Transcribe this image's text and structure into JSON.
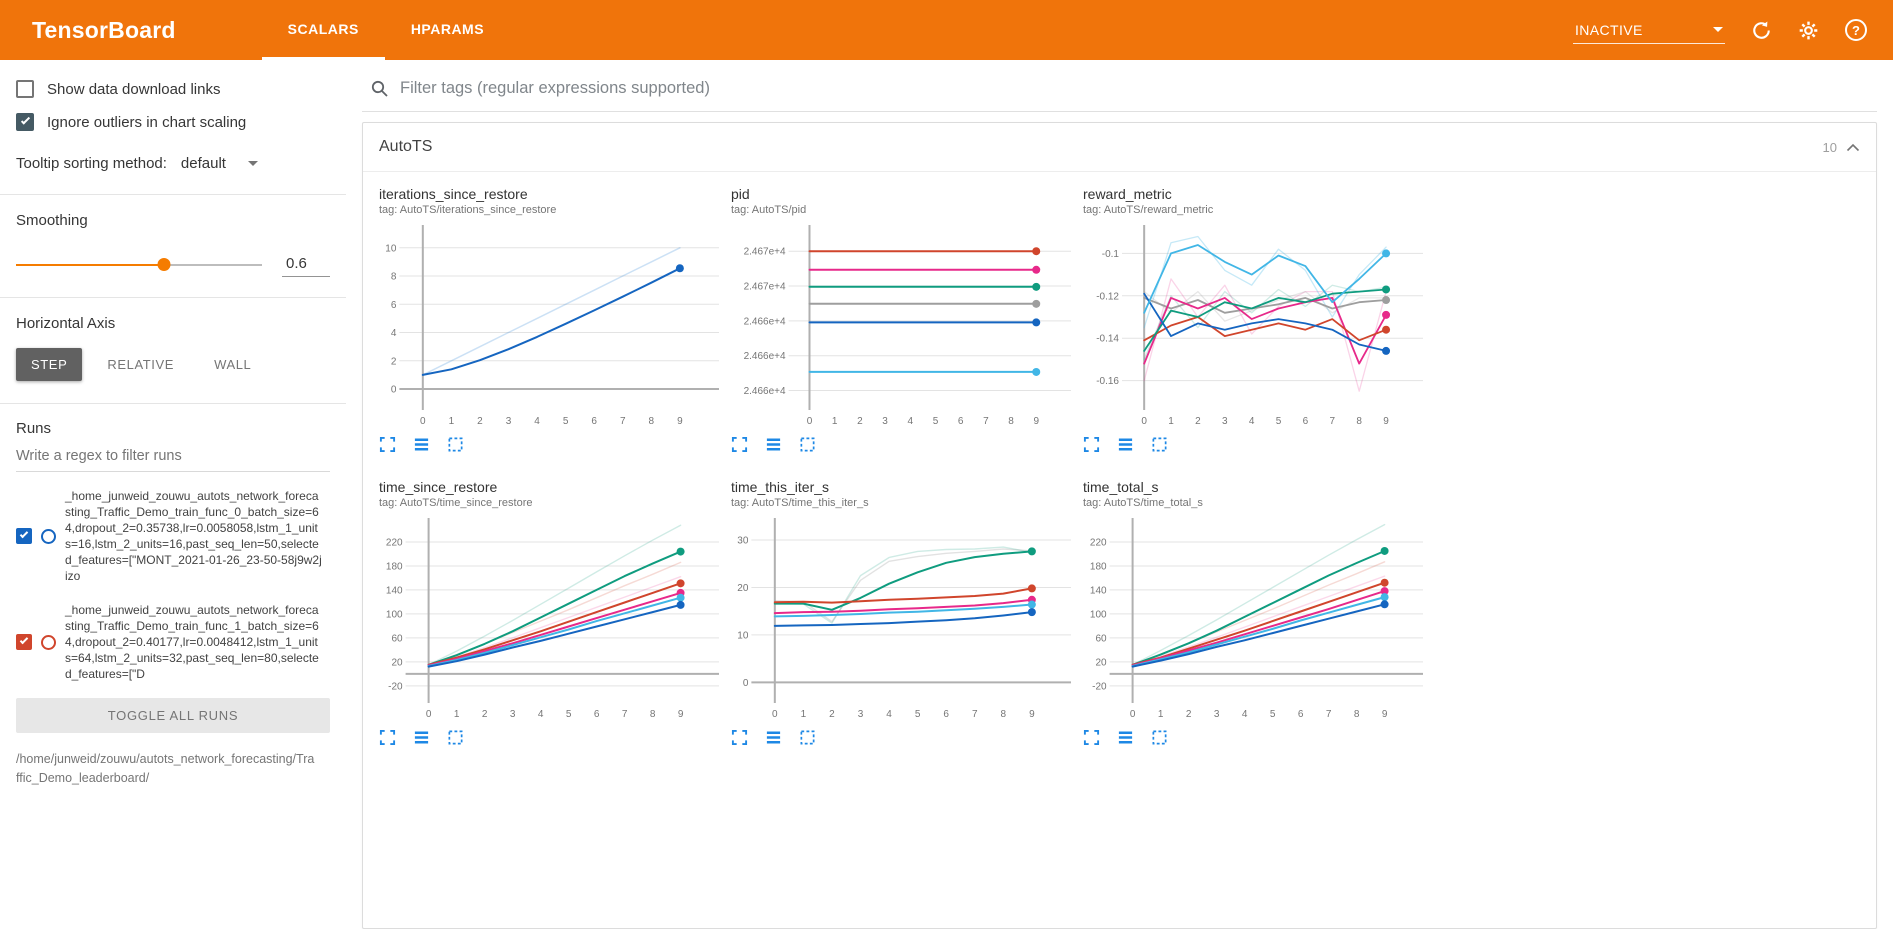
{
  "colors": {
    "header_orange": "#f0740b",
    "slider_orange": "#f57c00",
    "chart_icon_blue": "#1e88e5",
    "active_axis_button_gray": "#616161",
    "checked_checkbox_slate": "#455a64"
  },
  "header": {
    "title": "TensorBoard",
    "tabs": [
      {
        "label": "SCALARS",
        "active": true
      },
      {
        "label": "HPARAMS",
        "active": false
      }
    ],
    "status": "INACTIVE",
    "help_glyph": "?"
  },
  "sidebar": {
    "show_download_label": "Show data download links",
    "ignore_outliers_label": "Ignore outliers in chart scaling",
    "tooltip_sorting_label": "Tooltip sorting method:",
    "tooltip_sorting_value": "default",
    "smoothing_label": "Smoothing",
    "smoothing_value": "0.6",
    "horizontal_axis_label": "Horizontal Axis",
    "axis_buttons": [
      "STEP",
      "RELATIVE",
      "WALL"
    ],
    "runs_label": "Runs",
    "runs_filter_placeholder": "Write a regex to filter runs",
    "runs": [
      {
        "name": "_home_junweid_zouwu_autots_network_forecasting_Traffic_Demo_train_func_0_batch_size=64,dropout_2=0.35738,lr=0.0058058,lstm_1_units=16,lstm_2_units=16,past_seq_len=50,selected_features=[\"MONT_2021-01-26_23-50-58j9w2jizo",
        "color": "#1565c0",
        "checked": true
      },
      {
        "name": "_home_junweid_zouwu_autots_network_forecasting_Traffic_Demo_train_func_1_batch_size=64,dropout_2=0.40177,lr=0.0048412,lstm_1_units=64,lstm_2_units=32,past_seq_len=80,selected_features=[\"D",
        "color": "#d0452c",
        "checked": true
      }
    ],
    "toggle_all_label": "TOGGLE ALL RUNS",
    "footer_path": "/home/junweid/zouwu/autots_network_forecasting/Traffic_Demo_leaderboard/"
  },
  "main": {
    "filter_placeholder": "Filter tags (regular expressions supported)",
    "section_title": "AutoTS",
    "section_count": "10"
  },
  "chart_data": [
    {
      "type": "line",
      "name": "iterations_since_restore",
      "tag_line": "tag: AutoTS/iterations_since_restore",
      "x": [
        0,
        1,
        2,
        3,
        4,
        5,
        6,
        7,
        8,
        9
      ],
      "xticks": [
        0,
        1,
        2,
        3,
        4,
        5,
        6,
        7,
        8,
        9
      ],
      "xlim": [
        -0.75,
        10.3
      ],
      "ylim": [
        -1.2,
        11.4
      ],
      "yticks": [
        0,
        2,
        4,
        6,
        8,
        10
      ],
      "ytick_labels": [
        "0",
        "2",
        "4",
        "6",
        "8",
        "10"
      ],
      "series": [
        {
          "name": "run-raw",
          "color": "#1976d2",
          "opacity": 0.22,
          "width": 1.5,
          "values": [
            1,
            2,
            3,
            4,
            5,
            6,
            7,
            8,
            9,
            10
          ]
        },
        {
          "name": "run-smoothed",
          "color": "#1565c0",
          "width": 2,
          "endpoint": true,
          "values": [
            1,
            1.4,
            2.04,
            2.82,
            3.69,
            4.62,
            5.57,
            6.54,
            7.53,
            8.55
          ]
        }
      ]
    },
    {
      "type": "line",
      "name": "pid",
      "tag_line": "tag: AutoTS/pid",
      "x": [
        0,
        1,
        2,
        3,
        4,
        5,
        6,
        7,
        8,
        9
      ],
      "xticks": [
        0,
        1,
        2,
        3,
        4,
        5,
        6,
        7,
        8,
        9
      ],
      "xlim": [
        -0.75,
        10.3
      ],
      "ylim": [
        24662,
        24673.5
      ],
      "yticks": [
        24672,
        24669.75,
        24667.5,
        24665.25,
        24663
      ],
      "ytick_labels": [
        "2.467e+4",
        "2.467e+4",
        "2.466e+4",
        "2.466e+4",
        "2.466e+4"
      ],
      "series": [
        {
          "name": "run-red",
          "color": "#d0452c",
          "width": 2,
          "endpoint": true,
          "const": 24672
        },
        {
          "name": "run-pink",
          "color": "#e7298a",
          "width": 2,
          "endpoint": true,
          "const": 24670.8
        },
        {
          "name": "run-green",
          "color": "#0f9c7f",
          "width": 2,
          "endpoint": true,
          "const": 24669.7
        },
        {
          "name": "run-gray",
          "color": "#9e9e9e",
          "width": 2,
          "endpoint": true,
          "const": 24668.6
        },
        {
          "name": "run-blue",
          "color": "#1565c0",
          "width": 2,
          "endpoint": true,
          "const": 24667.4
        },
        {
          "name": "run-cyan",
          "color": "#41b6e6",
          "width": 2,
          "endpoint": true,
          "const": 24664.2
        }
      ]
    },
    {
      "type": "line",
      "name": "reward_metric",
      "tag_line": "tag: AutoTS/reward_metric",
      "x": [
        0,
        1,
        2,
        3,
        4,
        5,
        6,
        7,
        8,
        9
      ],
      "xticks": [
        0,
        1,
        2,
        3,
        4,
        5,
        6,
        7,
        8,
        9
      ],
      "xlim": [
        -0.75,
        10.3
      ],
      "ylim": [
        -0.172,
        -0.088
      ],
      "yticks": [
        -0.1,
        -0.12,
        -0.14,
        -0.16
      ],
      "ytick_labels": [
        "-0.1",
        "-0.12",
        "-0.14",
        "-0.16"
      ],
      "series": [
        {
          "name": "run-pink-raw",
          "color": "#e7298a",
          "opacity": 0.2,
          "width": 1.3,
          "values": [
            -0.16,
            -0.112,
            -0.13,
            -0.115,
            -0.138,
            -0.125,
            -0.118,
            -0.118,
            -0.165,
            -0.118
          ]
        },
        {
          "name": "run-green-raw",
          "color": "#0f9c7f",
          "opacity": 0.2,
          "width": 1.3,
          "values": [
            -0.15,
            -0.12,
            -0.135,
            -0.118,
            -0.128,
            -0.117,
            -0.125,
            -0.115,
            -0.118,
            -0.116
          ]
        },
        {
          "name": "run-cyan-raw",
          "color": "#41b6e6",
          "opacity": 0.3,
          "width": 1.3,
          "values": [
            -0.135,
            -0.095,
            -0.092,
            -0.108,
            -0.115,
            -0.098,
            -0.108,
            -0.13,
            -0.11,
            -0.097
          ]
        },
        {
          "name": "run-gray-raw",
          "color": "#9e9e9e",
          "opacity": 0.25,
          "width": 1.3,
          "values": [
            -0.118,
            -0.128,
            -0.118,
            -0.132,
            -0.127,
            -0.122,
            -0.118,
            -0.128,
            -0.121,
            -0.121
          ]
        },
        {
          "name": "run-gray",
          "color": "#9e9e9e",
          "width": 1.8,
          "endpoint": true,
          "values": [
            -0.121,
            -0.126,
            -0.122,
            -0.128,
            -0.126,
            -0.124,
            -0.121,
            -0.126,
            -0.123,
            -0.122
          ]
        },
        {
          "name": "run-pink",
          "color": "#e7298a",
          "width": 1.8,
          "endpoint": true,
          "values": [
            -0.152,
            -0.121,
            -0.126,
            -0.121,
            -0.131,
            -0.126,
            -0.123,
            -0.121,
            -0.152,
            -0.129
          ]
        },
        {
          "name": "run-red",
          "color": "#d0452c",
          "width": 1.8,
          "endpoint": true,
          "values": [
            -0.141,
            -0.134,
            -0.13,
            -0.139,
            -0.136,
            -0.133,
            -0.136,
            -0.131,
            -0.141,
            -0.136
          ]
        },
        {
          "name": "run-green",
          "color": "#0f9c7f",
          "width": 1.8,
          "endpoint": true,
          "values": [
            -0.146,
            -0.127,
            -0.13,
            -0.123,
            -0.126,
            -0.121,
            -0.123,
            -0.119,
            -0.118,
            -0.117
          ]
        },
        {
          "name": "run-blue",
          "color": "#1565c0",
          "width": 1.8,
          "endpoint": true,
          "values": [
            -0.119,
            -0.139,
            -0.133,
            -0.136,
            -0.133,
            -0.131,
            -0.133,
            -0.136,
            -0.143,
            -0.146
          ]
        },
        {
          "name": "run-cyan",
          "color": "#41b6e6",
          "width": 1.8,
          "endpoint": true,
          "values": [
            -0.128,
            -0.1,
            -0.096,
            -0.104,
            -0.11,
            -0.101,
            -0.106,
            -0.123,
            -0.112,
            -0.1
          ]
        }
      ]
    },
    {
      "type": "line",
      "name": "time_since_restore",
      "tag_line": "tag: AutoTS/time_since_restore",
      "x": [
        0,
        1,
        2,
        3,
        4,
        5,
        6,
        7,
        8,
        9
      ],
      "xticks": [
        0,
        1,
        2,
        3,
        4,
        5,
        6,
        7,
        8,
        9
      ],
      "xlim": [
        -0.75,
        10.3
      ],
      "ylim": [
        -42,
        255
      ],
      "yticks": [
        -20,
        20,
        60,
        100,
        140,
        180,
        220
      ],
      "ytick_labels": [
        "-20",
        "20",
        "60",
        "100",
        "140",
        "180",
        "220"
      ],
      "series": [
        {
          "name": "run-green-raw",
          "color": "#0f9c7f",
          "opacity": 0.2,
          "width": 1.4,
          "values": [
            15,
            38,
            63,
            89,
            116,
            143,
            170,
            197,
            223,
            248
          ]
        },
        {
          "name": "run-red-raw",
          "color": "#d0452c",
          "opacity": 0.2,
          "width": 1.4,
          "values": [
            15,
            32,
            50,
            69,
            88,
            107,
            127,
            147,
            166,
            186
          ]
        },
        {
          "name": "run-pink-raw",
          "color": "#e7298a",
          "opacity": 0.18,
          "width": 1.4,
          "values": [
            14,
            28,
            44,
            60,
            77,
            94,
            111,
            128,
            145,
            162
          ]
        },
        {
          "name": "run-green",
          "color": "#0f9c7f",
          "width": 2,
          "endpoint": true,
          "values": [
            15,
            31,
            50,
            71,
            94,
            117,
            140,
            163,
            184,
            204
          ]
        },
        {
          "name": "run-red",
          "color": "#d0452c",
          "width": 2,
          "endpoint": true,
          "values": [
            15,
            27,
            41,
            56,
            71,
            87,
            103,
            119,
            135,
            151
          ]
        },
        {
          "name": "run-pink",
          "color": "#e7298a",
          "width": 2,
          "endpoint": true,
          "values": [
            14,
            25,
            38,
            51,
            65,
            79,
            93,
            107,
            121,
            135
          ]
        },
        {
          "name": "run-cyan",
          "color": "#41b6e6",
          "width": 2,
          "endpoint": true,
          "values": [
            13,
            23,
            35,
            48,
            61,
            74,
            88,
            101,
            114,
            127
          ]
        },
        {
          "name": "run-blue",
          "color": "#1565c0",
          "width": 2,
          "endpoint": true,
          "values": [
            12,
            21,
            32,
            44,
            55,
            67,
            79,
            91,
            103,
            115
          ]
        }
      ]
    },
    {
      "type": "line",
      "name": "time_this_iter_s",
      "tag_line": "tag: AutoTS/time_this_iter_s",
      "x": [
        0,
        1,
        2,
        3,
        4,
        5,
        6,
        7,
        8,
        9
      ],
      "xticks": [
        0,
        1,
        2,
        3,
        4,
        5,
        6,
        7,
        8,
        9
      ],
      "xlim": [
        -0.75,
        10.3
      ],
      "ylim": [
        -3.5,
        34
      ],
      "yticks": [
        0,
        10,
        20,
        30
      ],
      "ytick_labels": [
        "0",
        "10",
        "20",
        "30"
      ],
      "series": [
        {
          "name": "run-gray-raw",
          "color": "#9e9e9e",
          "opacity": 0.3,
          "width": 1.4,
          "values": [
            17.2,
            17.0,
            12.8,
            21.5,
            25.5,
            26.5,
            27.2,
            27.6,
            28.1,
            27.7
          ]
        },
        {
          "name": "run-green-raw",
          "color": "#0f9c7f",
          "opacity": 0.2,
          "width": 1.4,
          "values": [
            16.6,
            16.5,
            12.5,
            22.5,
            26.3,
            27.6,
            28.0,
            28.1,
            28.5,
            27.4
          ]
        },
        {
          "name": "run-green",
          "color": "#0f9c7f",
          "width": 2,
          "endpoint": true,
          "values": [
            16.6,
            16.6,
            15.3,
            17.8,
            20.8,
            23.2,
            25.2,
            26.4,
            27.1,
            27.6
          ]
        },
        {
          "name": "run-red",
          "color": "#d0452c",
          "width": 2,
          "endpoint": true,
          "values": [
            16.9,
            17.0,
            16.8,
            17.1,
            17.4,
            17.6,
            17.9,
            18.2,
            18.7,
            19.8
          ]
        },
        {
          "name": "run-pink",
          "color": "#e7298a",
          "width": 2,
          "endpoint": true,
          "values": [
            14.6,
            14.8,
            14.9,
            15.1,
            15.4,
            15.6,
            15.9,
            16.2,
            16.7,
            17.4
          ]
        },
        {
          "name": "run-cyan",
          "color": "#41b6e6",
          "width": 2,
          "endpoint": true,
          "values": [
            13.9,
            14.0,
            14.2,
            14.4,
            14.7,
            14.9,
            15.2,
            15.5,
            15.9,
            16.4
          ]
        },
        {
          "name": "run-blue",
          "color": "#1565c0",
          "width": 2,
          "endpoint": true,
          "values": [
            11.9,
            12.0,
            12.1,
            12.3,
            12.5,
            12.8,
            13.1,
            13.5,
            14.1,
            14.8
          ]
        }
      ]
    },
    {
      "type": "line",
      "name": "time_total_s",
      "tag_line": "tag: AutoTS/time_total_s",
      "x": [
        0,
        1,
        2,
        3,
        4,
        5,
        6,
        7,
        8,
        9
      ],
      "xticks": [
        0,
        1,
        2,
        3,
        4,
        5,
        6,
        7,
        8,
        9
      ],
      "xlim": [
        -0.75,
        10.3
      ],
      "ylim": [
        -42,
        255
      ],
      "yticks": [
        -20,
        20,
        60,
        100,
        140,
        180,
        220
      ],
      "ytick_labels": [
        "-20",
        "20",
        "60",
        "100",
        "140",
        "180",
        "220"
      ],
      "series": [
        {
          "name": "run-green-raw",
          "color": "#0f9c7f",
          "opacity": 0.2,
          "width": 1.4,
          "values": [
            15,
            39,
            64,
            90,
            117,
            144,
            171,
            198,
            224,
            249
          ]
        },
        {
          "name": "run-red-raw",
          "color": "#d0452c",
          "opacity": 0.2,
          "width": 1.4,
          "values": [
            15,
            33,
            51,
            70,
            89,
            108,
            128,
            148,
            167,
            187
          ]
        },
        {
          "name": "run-pink-raw",
          "color": "#e7298a",
          "opacity": 0.18,
          "width": 1.4,
          "values": [
            14,
            29,
            45,
            61,
            78,
            95,
            112,
            129,
            146,
            163
          ]
        },
        {
          "name": "run-green",
          "color": "#0f9c7f",
          "width": 2,
          "endpoint": true,
          "values": [
            15,
            32,
            51,
            72,
            95,
            118,
            141,
            164,
            185,
            205
          ]
        },
        {
          "name": "run-red",
          "color": "#d0452c",
          "width": 2,
          "endpoint": true,
          "values": [
            15,
            27,
            42,
            57,
            72,
            88,
            104,
            120,
            136,
            152
          ]
        },
        {
          "name": "run-pink",
          "color": "#e7298a",
          "width": 2,
          "endpoint": true,
          "values": [
            14,
            26,
            39,
            52,
            66,
            80,
            94,
            108,
            123,
            138
          ]
        },
        {
          "name": "run-cyan",
          "color": "#41b6e6",
          "width": 2,
          "endpoint": true,
          "values": [
            13,
            24,
            36,
            49,
            62,
            75,
            89,
            102,
            115,
            128
          ]
        },
        {
          "name": "run-blue",
          "color": "#1565c0",
          "width": 2,
          "endpoint": true,
          "values": [
            12,
            22,
            33,
            45,
            56,
            68,
            80,
            92,
            104,
            116
          ]
        }
      ]
    }
  ]
}
